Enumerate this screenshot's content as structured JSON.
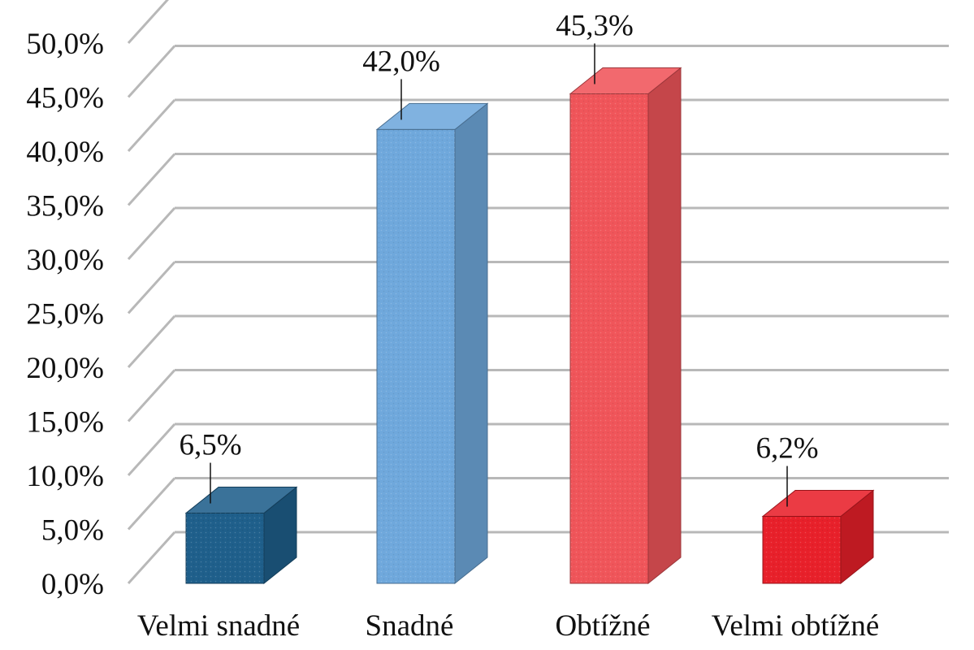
{
  "chart_data": {
    "type": "bar",
    "title": "",
    "xlabel": "",
    "ylabel": "",
    "categories": [
      "Velmi snadné",
      "Snadné",
      "Obtížné",
      "Velmi obtížné"
    ],
    "values": [
      6.5,
      42.0,
      45.3,
      6.2
    ],
    "value_labels": [
      "6,5%",
      "42,0%",
      "45,3%",
      "6,2%"
    ],
    "ylim": [
      0,
      50
    ],
    "ytick_values": [
      0,
      5,
      10,
      15,
      20,
      25,
      30,
      35,
      40,
      45,
      50
    ],
    "ytick_labels": [
      "0,0%",
      "5,0%",
      "10,0%",
      "15,0%",
      "20,0%",
      "25,0%",
      "30,0%",
      "35,0%",
      "40,0%",
      "45,0%",
      "50,0%"
    ],
    "grid": true,
    "style": "3d-columns",
    "colors": [
      "#1f5f8b",
      "#6fa8dc",
      "#f0555a",
      "#e8202a"
    ]
  }
}
